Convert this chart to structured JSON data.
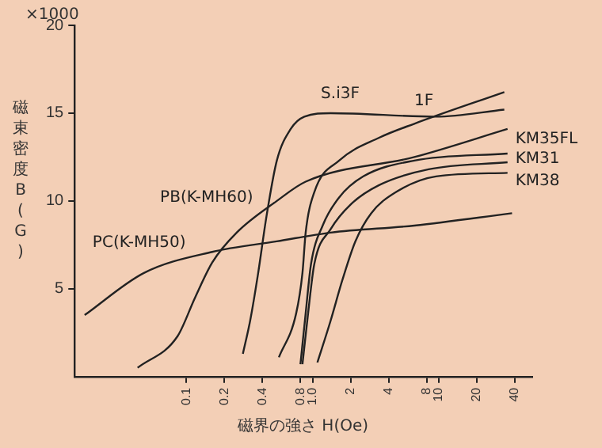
{
  "chart_data": {
    "type": "line",
    "xlabel": "磁界の強さ H(Oe)",
    "ylabel": "磁束密度 B(G)",
    "annotations": [
      "×1000"
    ],
    "log": "x",
    "marker": "none",
    "line_style": "solid",
    "xlim": [
      0.013,
      55
    ],
    "xticks": [
      0.1,
      0.2,
      0.4,
      0.8,
      {
        "value": 1,
        "label": "1.0"
      },
      2,
      4,
      8,
      10,
      20,
      40
    ],
    "ylim": [
      0,
      20
    ],
    "yticks": [
      5,
      10,
      15,
      20
    ],
    "series": [
      {
        "name": "PC(K-MH50)",
        "color": "#222222",
        "x": [
          0.0156,
          0.046,
          0.16,
          0.52,
          1.39,
          6.4,
          38
        ],
        "values": [
          3.5,
          5.9,
          7.1,
          7.7,
          8.2,
          8.6,
          9.3
        ]
      },
      {
        "name": "PB(K-MH60)",
        "color": "#222222",
        "x": [
          0.041,
          0.085,
          0.117,
          0.16,
          0.25,
          0.52,
          0.88,
          6.4,
          35
        ],
        "values": [
          0.5,
          2.3,
          4.5,
          6.5,
          8.2,
          10,
          11.1,
          12.5,
          14.1
        ]
      },
      {
        "name": "S.i3F",
        "color": "#222222",
        "x": [
          0.28,
          0.32,
          0.37,
          0.43,
          0.52,
          0.67,
          0.86,
          1.39,
          9.5,
          33
        ],
        "values": [
          1.3,
          3.2,
          5.9,
          9.1,
          12.3,
          14.1,
          14.8,
          15,
          14.8,
          15.2
        ]
      },
      {
        "name": "1F",
        "color": "#222222",
        "x": [
          0.54,
          0.74,
          0.83,
          0.88,
          1.03,
          1.62,
          3.36,
          6.4,
          33
        ],
        "values": [
          1.1,
          3.6,
          5.9,
          8.2,
          10.5,
          12.3,
          13.6,
          14.4,
          16.2
        ]
      },
      {
        "name": "KM35FL",
        "color": "#222222",
        "x": [
          0.8,
          0.88,
          0.97,
          1.2,
          1.62,
          2.52,
          6.4,
          35
        ],
        "values": [
          0.7,
          3.6,
          6.4,
          8.6,
          10.2,
          11.4,
          12.3,
          12.7
        ]
      },
      {
        "name": "KM31",
        "color": "#222222",
        "x": [
          0.83,
          0.92,
          1.03,
          1.39,
          2,
          3.36,
          8.3,
          35
        ],
        "values": [
          0.7,
          3.6,
          6.4,
          8.4,
          9.8,
          10.9,
          11.8,
          12.2
        ]
      },
      {
        "name": "KM38",
        "color": "#222222",
        "x": [
          1.09,
          1.39,
          1.72,
          2.18,
          2.91,
          4.56,
          9.5,
          35
        ],
        "values": [
          0.8,
          3.2,
          5.5,
          7.7,
          9.3,
          10.5,
          11.4,
          11.6
        ]
      }
    ]
  }
}
